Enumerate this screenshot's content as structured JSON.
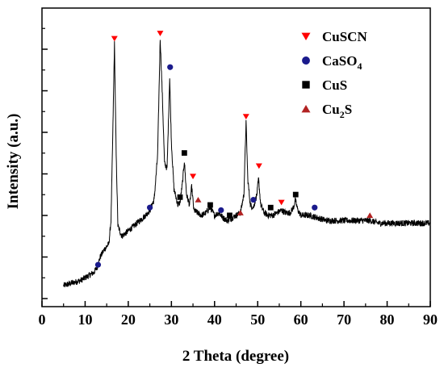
{
  "chart_data": {
    "type": "line",
    "title": "",
    "xlabel": "2 Theta (degree)",
    "ylabel": "Intensity (a.u.)",
    "xlim": [
      0,
      90
    ],
    "x_ticks": [
      "0",
      "10",
      "20",
      "30",
      "40",
      "50",
      "60",
      "70",
      "80",
      "90"
    ],
    "y_ticks_labeled": false,
    "grid": false,
    "legend_position": "top-right",
    "series": [
      {
        "points": [
          [
            5.0,
            0.05
          ],
          [
            6.0,
            0.055
          ],
          [
            7.0,
            0.06
          ],
          [
            8.0,
            0.065
          ],
          [
            9.0,
            0.07
          ],
          [
            10.0,
            0.08
          ],
          [
            11.0,
            0.09
          ],
          [
            12.0,
            0.1
          ],
          [
            12.8,
            0.12
          ],
          [
            13.5,
            0.16
          ],
          [
            14.5,
            0.19
          ],
          [
            15.5,
            0.21
          ],
          [
            16.0,
            0.3
          ],
          [
            16.4,
            0.62
          ],
          [
            16.8,
            0.98
          ],
          [
            17.2,
            0.55
          ],
          [
            17.6,
            0.28
          ],
          [
            18.5,
            0.24
          ],
          [
            20.0,
            0.26
          ],
          [
            22.0,
            0.29
          ],
          [
            24.0,
            0.32
          ],
          [
            25.0,
            0.34
          ],
          [
            26.0,
            0.38
          ],
          [
            26.8,
            0.55
          ],
          [
            27.4,
            1.0
          ],
          [
            27.9,
            0.78
          ],
          [
            28.4,
            0.52
          ],
          [
            29.0,
            0.5
          ],
          [
            29.6,
            0.85
          ],
          [
            30.0,
            0.6
          ],
          [
            30.6,
            0.42
          ],
          [
            31.5,
            0.36
          ],
          [
            32.0,
            0.37
          ],
          [
            32.6,
            0.45
          ],
          [
            33.0,
            0.53
          ],
          [
            33.5,
            0.4
          ],
          [
            34.2,
            0.36
          ],
          [
            34.7,
            0.43
          ],
          [
            35.2,
            0.34
          ],
          [
            36.0,
            0.33
          ],
          [
            37.0,
            0.32
          ],
          [
            38.0,
            0.33
          ],
          [
            39.0,
            0.35
          ],
          [
            40.0,
            0.32
          ],
          [
            41.0,
            0.33
          ],
          [
            42.0,
            0.31
          ],
          [
            43.0,
            0.3
          ],
          [
            44.0,
            0.31
          ],
          [
            45.0,
            0.32
          ],
          [
            46.0,
            0.33
          ],
          [
            46.8,
            0.4
          ],
          [
            47.3,
            0.68
          ],
          [
            47.7,
            0.46
          ],
          [
            48.3,
            0.36
          ],
          [
            49.0,
            0.35
          ],
          [
            49.8,
            0.4
          ],
          [
            50.2,
            0.46
          ],
          [
            50.7,
            0.36
          ],
          [
            51.5,
            0.33
          ],
          [
            52.5,
            0.32
          ],
          [
            53.5,
            0.32
          ],
          [
            54.5,
            0.33
          ],
          [
            55.5,
            0.34
          ],
          [
            56.5,
            0.33
          ],
          [
            57.5,
            0.33
          ],
          [
            58.3,
            0.35
          ],
          [
            58.7,
            0.38
          ],
          [
            59.3,
            0.34
          ],
          [
            60.0,
            0.32
          ],
          [
            62.0,
            0.32
          ],
          [
            64.0,
            0.31
          ],
          [
            66.0,
            0.3
          ],
          [
            68.0,
            0.3
          ],
          [
            70.0,
            0.3
          ],
          [
            72.0,
            0.3
          ],
          [
            74.0,
            0.3
          ],
          [
            76.0,
            0.3
          ],
          [
            78.0,
            0.29
          ],
          [
            80.0,
            0.29
          ],
          [
            82.0,
            0.29
          ],
          [
            84.0,
            0.29
          ],
          [
            86.0,
            0.29
          ],
          [
            88.0,
            0.29
          ],
          [
            90.0,
            0.29
          ]
        ],
        "noise_amplitude": 0.012,
        "color": "#000000"
      }
    ],
    "markers": [
      {
        "phase": "CuSCN",
        "x": 16.8,
        "y": 1.0
      },
      {
        "phase": "CuSCN",
        "x": 27.4,
        "y": 1.02
      },
      {
        "phase": "CuSCN",
        "x": 35.0,
        "y": 0.47
      },
      {
        "phase": "CuSCN",
        "x": 47.3,
        "y": 0.7
      },
      {
        "phase": "CuSCN",
        "x": 50.3,
        "y": 0.51
      },
      {
        "phase": "CuSCN",
        "x": 55.5,
        "y": 0.37
      },
      {
        "phase": "CaSO4",
        "x": 13.0,
        "y": 0.13
      },
      {
        "phase": "CaSO4",
        "x": 25.0,
        "y": 0.35
      },
      {
        "phase": "CaSO4",
        "x": 29.7,
        "y": 0.89
      },
      {
        "phase": "CaSO4",
        "x": 41.5,
        "y": 0.34
      },
      {
        "phase": "CaSO4",
        "x": 49.0,
        "y": 0.38
      },
      {
        "phase": "CaSO4",
        "x": 63.2,
        "y": 0.35
      },
      {
        "phase": "CuS",
        "x": 32.0,
        "y": 0.39
      },
      {
        "phase": "CuS",
        "x": 33.0,
        "y": 0.56
      },
      {
        "phase": "CuS",
        "x": 39.0,
        "y": 0.36
      },
      {
        "phase": "CuS",
        "x": 43.5,
        "y": 0.32
      },
      {
        "phase": "CuS",
        "x": 53.0,
        "y": 0.35
      },
      {
        "phase": "CuS",
        "x": 58.8,
        "y": 0.4
      },
      {
        "phase": "Cu2S",
        "x": 36.2,
        "y": 0.38
      },
      {
        "phase": "Cu2S",
        "x": 46.0,
        "y": 0.33
      },
      {
        "phase": "Cu2S",
        "x": 76.0,
        "y": 0.32
      }
    ],
    "legend": [
      {
        "phase": "CuSCN",
        "label": "CuSCN",
        "sub": "",
        "after": "",
        "marker": "triangle-down",
        "color": "#ff0000"
      },
      {
        "phase": "CaSO4",
        "label": "CaSO",
        "sub": "4",
        "after": "",
        "marker": "circle",
        "color": "#1a1a8c"
      },
      {
        "phase": "CuS",
        "label": "CuS",
        "sub": "",
        "after": "",
        "marker": "square",
        "color": "#000000"
      },
      {
        "phase": "Cu2S",
        "label": "Cu",
        "sub": "2",
        "after": "S",
        "marker": "triangle-up",
        "color": "#b22222"
      }
    ]
  }
}
